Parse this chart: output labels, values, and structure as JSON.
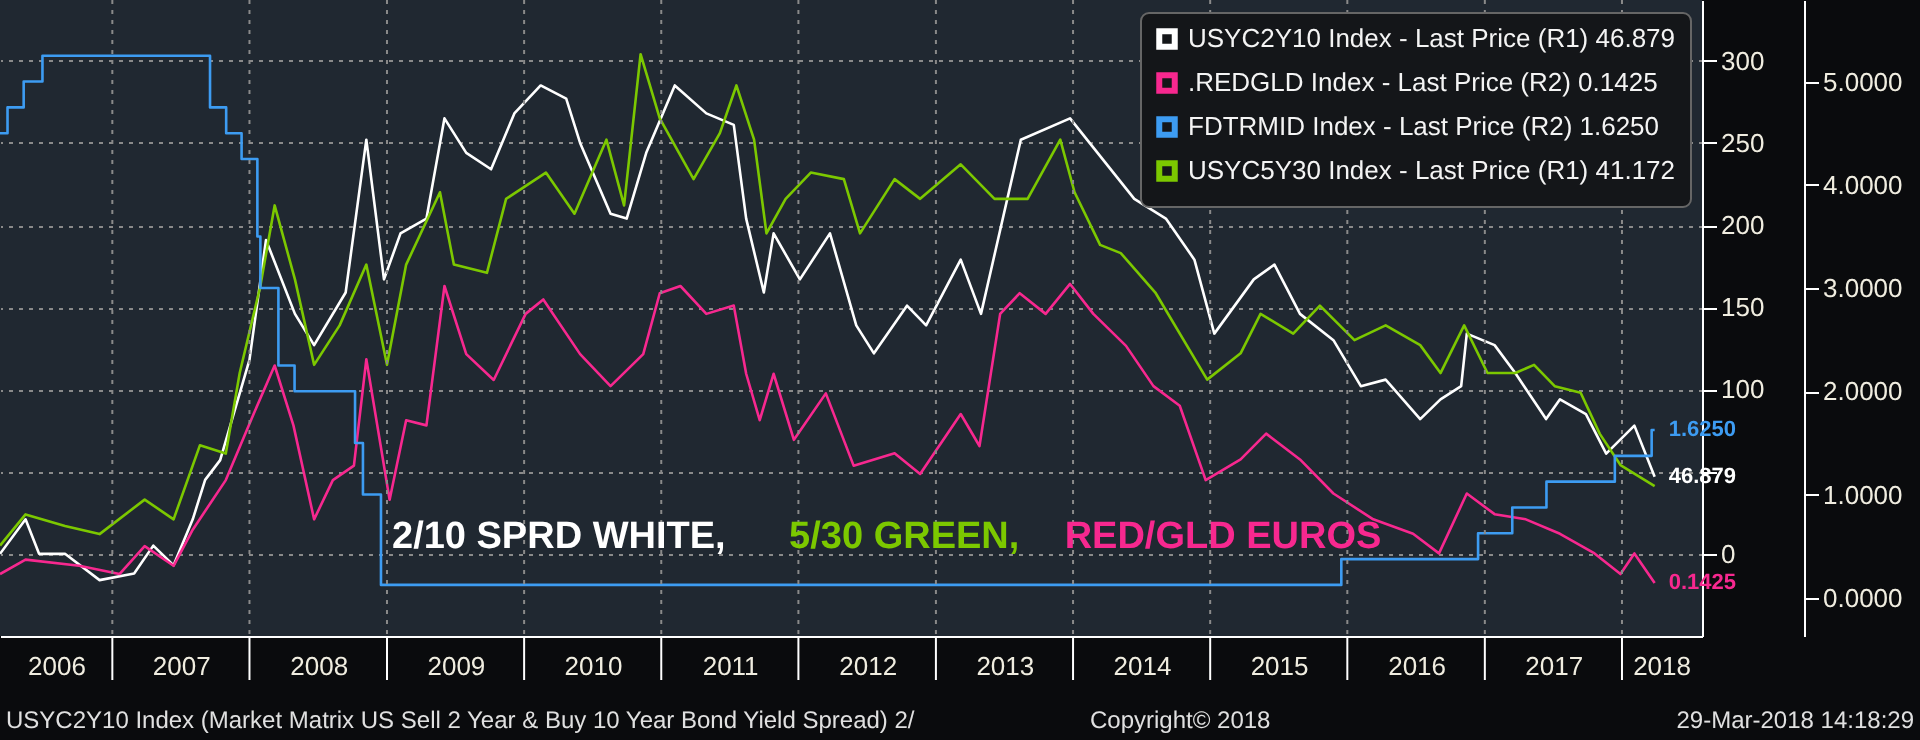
{
  "chart_data": {
    "type": "line",
    "xlim": [
      "2006-03-08",
      "2018-08-02"
    ],
    "xticks": [
      {
        "value": "2006-08-04",
        "label": "2006"
      },
      {
        "value": "2007-01-01",
        "label": null
      },
      {
        "value": "2007-07-02",
        "label": "2007"
      },
      {
        "value": "2008-01-01",
        "label": null
      },
      {
        "value": "2008-07-02",
        "label": "2008"
      },
      {
        "value": "2009-01-01",
        "label": null
      },
      {
        "value": "2009-07-02",
        "label": "2009"
      },
      {
        "value": "2010-01-01",
        "label": null
      },
      {
        "value": "2010-07-02",
        "label": "2010"
      },
      {
        "value": "2011-01-01",
        "label": null
      },
      {
        "value": "2011-07-02",
        "label": "2011"
      },
      {
        "value": "2012-01-01",
        "label": null
      },
      {
        "value": "2012-07-02",
        "label": "2012"
      },
      {
        "value": "2013-01-01",
        "label": null
      },
      {
        "value": "2013-07-02",
        "label": "2013"
      },
      {
        "value": "2014-01-01",
        "label": null
      },
      {
        "value": "2014-07-02",
        "label": "2014"
      },
      {
        "value": "2015-01-01",
        "label": null
      },
      {
        "value": "2015-07-02",
        "label": "2015"
      },
      {
        "value": "2016-01-01",
        "label": null
      },
      {
        "value": "2016-07-02",
        "label": "2016"
      },
      {
        "value": "2017-01-01",
        "label": null
      },
      {
        "value": "2017-07-02",
        "label": "2017"
      },
      {
        "value": "2018-01-01",
        "label": null
      },
      {
        "value": "2018-04-15",
        "label": "2018"
      }
    ],
    "ylim": [
      -50,
      337
    ],
    "yticks": [
      0,
      {
        "value": 50,
        "label": null
      },
      100,
      150,
      200,
      250,
      300
    ],
    "y2lim": [
      -0.37,
      5.79
    ],
    "y2ticks": [
      {
        "value": 0,
        "label": "0.0000"
      },
      {
        "value": 1,
        "label": "1.0000"
      },
      {
        "value": 2,
        "label": "2.0000"
      },
      {
        "value": 3,
        "label": "3.0000"
      },
      {
        "value": 4,
        "label": "4.0000"
      },
      {
        "value": 5,
        "label": "5.0000"
      }
    ],
    "grid": true,
    "legend": "top right",
    "series": [
      {
        "name": "USYC2Y10 Index - Last Price (R1) 46.879",
        "color": "#ffffff",
        "type": "line",
        "x": [
          "2006-03-08",
          "2006-05-15",
          "2006-06-20",
          "2006-08-28",
          "2006-11-28",
          "2007-02-28",
          "2007-04-20",
          "2007-06-13",
          "2007-08-03",
          "2007-09-05",
          "2007-10-15",
          "2008-01-01",
          "2008-02-14",
          "2008-05-01",
          "2008-06-21",
          "2008-09-13",
          "2008-11-07",
          "2008-12-24",
          "2009-02-06",
          "2009-04-16",
          "2009-06-03",
          "2009-07-31",
          "2009-10-05",
          "2009-12-06",
          "2010-02-14",
          "2010-04-23",
          "2010-05-30",
          "2010-08-19",
          "2010-10-01",
          "2010-11-22",
          "2011-02-06",
          "2011-05-01",
          "2011-07-13",
          "2011-08-15",
          "2011-10-01",
          "2011-10-27",
          "2012-01-05",
          "2012-03-25",
          "2012-06-03",
          "2012-07-20",
          "2012-10-16",
          "2012-12-06",
          "2013-03-08",
          "2013-05-01",
          "2013-08-15",
          "2013-12-24",
          "2014-06-13",
          "2014-09-05",
          "2014-11-20",
          "2015-01-12",
          "2015-04-27",
          "2015-06-21",
          "2015-08-28",
          "2015-11-25",
          "2016-02-06",
          "2016-04-12",
          "2016-07-13",
          "2016-09-05",
          "2016-10-30",
          "2016-11-14",
          "2017-01-27",
          "2017-03-23",
          "2017-06-13",
          "2017-07-20",
          "2017-09-27",
          "2017-11-20",
          "2018-02-03",
          "2018-03-29"
        ],
        "values": [
          0,
          21,
          0,
          0,
          -16,
          -12,
          5,
          -7,
          21,
          45,
          57,
          118,
          191,
          146,
          127,
          159,
          252,
          167,
          195,
          204,
          265,
          244,
          234,
          268,
          285,
          277,
          250,
          207,
          204,
          244,
          285,
          268,
          261,
          204,
          159,
          195,
          167,
          195,
          139,
          122,
          151,
          139,
          179,
          146,
          252,
          265,
          216,
          204,
          179,
          134,
          167,
          176,
          146,
          130,
          102,
          106,
          82,
          94,
          102,
          134,
          127,
          110,
          82,
          94,
          85,
          61,
          78,
          46.879
        ],
        "value_labels": [
          null,
          null,
          null,
          null,
          null,
          null,
          null,
          null,
          null,
          null,
          null,
          null,
          null,
          null,
          null,
          null,
          null,
          null,
          null,
          null,
          null,
          null,
          null,
          null,
          null,
          null,
          null,
          null,
          null,
          null,
          null,
          null,
          null,
          null,
          null,
          null,
          null,
          null,
          null,
          null,
          null,
          null,
          null,
          null,
          null,
          null,
          null,
          null,
          null,
          null,
          null,
          null,
          null,
          null,
          null,
          null,
          null,
          null,
          null,
          null,
          null,
          null,
          null,
          null,
          null,
          null,
          null,
          "46.879"
        ]
      },
      {
        "name": ".REDGLD Index - Last Price (R2) 0.1425",
        "color": "#f7288f",
        "type": "line",
        "axis": "y2",
        "x": [
          "2006-03-08",
          "2006-05-15",
          "2006-10-05",
          "2007-01-20",
          "2007-03-28",
          "2007-06-13",
          "2007-08-03",
          "2007-10-30",
          "2008-01-12",
          "2008-03-08",
          "2008-04-27",
          "2008-06-21",
          "2008-08-10",
          "2008-10-05",
          "2008-11-07",
          "2009-01-08",
          "2009-02-21",
          "2009-04-16",
          "2009-06-03",
          "2009-07-31",
          "2009-10-12",
          "2010-01-05",
          "2010-02-21",
          "2010-05-30",
          "2010-08-19",
          "2010-11-14",
          "2010-12-28",
          "2011-02-21",
          "2011-05-01",
          "2011-07-13",
          "2011-08-15",
          "2011-09-20",
          "2011-10-27",
          "2011-12-20",
          "2012-03-14",
          "2012-05-27",
          "2012-09-13",
          "2012-11-20",
          "2013-03-08",
          "2013-04-27",
          "2013-06-21",
          "2013-08-12",
          "2013-10-20",
          "2013-12-24",
          "2014-02-24",
          "2014-05-22",
          "2014-08-03",
          "2014-10-12",
          "2014-12-20",
          "2015-03-23",
          "2015-05-30",
          "2015-08-28",
          "2015-11-25",
          "2016-03-10",
          "2016-06-24",
          "2016-09-01",
          "2016-11-14",
          "2017-01-27",
          "2017-04-20",
          "2017-07-20",
          "2017-10-20",
          "2017-12-28",
          "2018-02-03",
          "2018-03-29"
        ],
        "values": [
          0.23,
          0.37,
          0.31,
          0.23,
          0.5,
          0.31,
          0.66,
          1.14,
          1.78,
          2.25,
          1.67,
          0.76,
          1.14,
          1.28,
          2.31,
          0.95,
          1.72,
          1.67,
          3.02,
          2.36,
          2.11,
          2.75,
          2.89,
          2.36,
          2.05,
          2.36,
          2.95,
          3.02,
          2.75,
          2.83,
          2.17,
          1.72,
          2.17,
          1.53,
          1.98,
          1.28,
          1.4,
          1.2,
          1.78,
          1.47,
          2.75,
          2.95,
          2.75,
          3.04,
          2.75,
          2.44,
          2.05,
          1.86,
          1.14,
          1.34,
          1.59,
          1.34,
          1.01,
          0.76,
          0.62,
          0.43,
          1.01,
          0.81,
          0.76,
          0.62,
          0.43,
          0.23,
          0.43,
          0.1425
        ],
        "value_labels": [
          null,
          null,
          null,
          null,
          null,
          null,
          null,
          null,
          null,
          null,
          null,
          null,
          null,
          null,
          null,
          null,
          null,
          null,
          null,
          null,
          null,
          null,
          null,
          null,
          null,
          null,
          null,
          null,
          null,
          null,
          null,
          null,
          null,
          null,
          null,
          null,
          null,
          null,
          null,
          null,
          null,
          null,
          null,
          null,
          null,
          null,
          null,
          null,
          null,
          null,
          null,
          null,
          null,
          null,
          null,
          null,
          null,
          null,
          null,
          null,
          null,
          null,
          null,
          "0.1425"
        ]
      },
      {
        "name": "FDTRMID Index - Last Price (R2) 1.6250",
        "color": "#3d9cf2",
        "type": "step",
        "axis": "y2",
        "x": [
          "2006-03-08",
          "2006-03-28",
          "2006-05-10",
          "2006-06-29",
          "2007-09-18",
          "2007-10-31",
          "2007-12-11",
          "2008-01-22",
          "2008-01-30",
          "2008-03-18",
          "2008-04-30",
          "2008-10-08",
          "2008-10-29",
          "2008-12-16",
          "2015-12-16",
          "2016-12-14",
          "2017-03-15",
          "2017-06-14",
          "2017-12-13",
          "2018-03-21",
          "2018-03-29"
        ],
        "values": [
          4.5,
          4.75,
          5.0,
          5.25,
          4.75,
          4.5,
          4.25,
          3.5,
          3.0,
          2.25,
          2.0,
          1.5,
          1.0,
          0.125,
          0.375,
          0.625,
          0.875,
          1.125,
          1.375,
          1.625,
          1.625
        ],
        "value_labels": [
          null,
          null,
          null,
          null,
          null,
          null,
          null,
          null,
          null,
          null,
          null,
          null,
          null,
          null,
          null,
          null,
          null,
          null,
          null,
          null,
          "1.6250"
        ]
      },
      {
        "name": "USYC5Y30 Index - Last Price (R1) 41.172",
        "color": "#7cc800",
        "type": "line",
        "x": [
          "2006-03-08",
          "2006-05-15",
          "2006-08-28",
          "2006-11-28",
          "2007-03-28",
          "2007-06-13",
          "2007-08-22",
          "2007-10-30",
          "2007-12-06",
          "2008-01-30",
          "2008-03-08",
          "2008-05-01",
          "2008-06-21",
          "2008-08-28",
          "2008-11-07",
          "2009-01-01",
          "2009-02-21",
          "2009-05-22",
          "2009-06-28",
          "2009-09-24",
          "2009-11-14",
          "2010-02-28",
          "2010-05-15",
          "2010-08-08",
          "2010-09-24",
          "2010-11-07",
          "2010-12-28",
          "2011-03-28",
          "2011-06-06",
          "2011-07-20",
          "2011-09-05",
          "2011-10-08",
          "2011-11-28",
          "2012-02-03",
          "2012-05-01",
          "2012-06-13",
          "2012-09-13",
          "2012-11-20",
          "2013-03-08",
          "2013-06-06",
          "2013-09-02",
          "2013-11-28",
          "2014-01-05",
          "2014-03-14",
          "2014-05-08",
          "2014-08-08",
          "2014-12-24",
          "2015-03-23",
          "2015-05-15",
          "2015-08-10",
          "2015-10-20",
          "2016-01-20",
          "2016-04-12",
          "2016-07-13",
          "2016-09-05",
          "2016-11-07",
          "2017-01-08",
          "2017-03-23",
          "2017-05-12",
          "2017-07-06",
          "2017-09-13",
          "2017-11-03",
          "2017-12-28",
          "2018-03-29"
        ],
        "values": [
          5,
          24,
          17,
          12,
          33,
          21,
          66,
          61,
          110,
          163,
          212,
          167,
          115,
          139,
          176,
          115,
          176,
          220,
          176,
          171,
          216,
          232,
          207,
          252,
          212,
          304,
          265,
          228,
          256,
          285,
          252,
          195,
          216,
          232,
          228,
          195,
          228,
          216,
          237,
          216,
          216,
          252,
          220,
          188,
          183,
          159,
          106,
          122,
          146,
          134,
          151,
          130,
          139,
          127,
          110,
          139,
          110,
          110,
          115,
          102,
          98,
          73,
          54,
          41.172
        ]
      }
    ],
    "annotations": [
      "2/10 SPRD WHITE,",
      "5/30 GREEN,",
      "RED/GLD EUROS",
      "USYC2Y10 Index (Market Matrix US Sell 2 Year & Buy 10 Year Bond Yield Spread) 2/",
      "Copyright© 2018",
      "29-Mar-2018 14:18:29"
    ]
  }
}
